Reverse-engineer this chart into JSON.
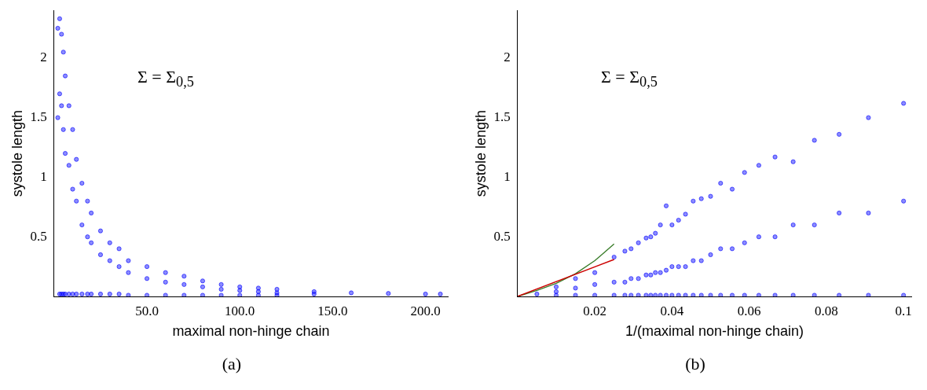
{
  "chart_data": [
    {
      "type": "scatter",
      "xlabel": "maximal non-hinge chain",
      "ylabel": "systole length",
      "annotations": [
        "Σ = Σ$_{0,5}$",
        "(a)"
      ],
      "xlim": [
        0,
        212
      ],
      "ylim": [
        0,
        2.4
      ],
      "xticks": [
        {
          "value": 50,
          "label": "50.0"
        },
        {
          "value": 100,
          "label": "100.0"
        },
        {
          "value": 150,
          "label": "150.0"
        },
        {
          "value": 200,
          "label": "200.0"
        }
      ],
      "yticks": [
        0.5,
        1.0,
        1.5,
        2.0
      ],
      "marker": "circle",
      "x": [
        2,
        3,
        4,
        5,
        6,
        8,
        10,
        12,
        15,
        18,
        20,
        25,
        30,
        35,
        40,
        50,
        60,
        70,
        80,
        90,
        100,
        110,
        120,
        140,
        160,
        180,
        200,
        208,
        2,
        3,
        4,
        5,
        6,
        8,
        10,
        12,
        15,
        18,
        20,
        25,
        30,
        35,
        40,
        50,
        60,
        70,
        80,
        90,
        100,
        110,
        120,
        140,
        3,
        4,
        5,
        6,
        8,
        10,
        12,
        15,
        18,
        20,
        25,
        30,
        35,
        40,
        50,
        60,
        70,
        80,
        90,
        100,
        110,
        120
      ],
      "series": [
        {
          "color": "#0000ff",
          "values": [
            2.25,
            2.33,
            2.2,
            2.05,
            1.85,
            1.6,
            1.4,
            1.15,
            0.95,
            0.8,
            0.7,
            0.55,
            0.45,
            0.4,
            0.3,
            0.25,
            0.2,
            0.17,
            0.13,
            0.1,
            0.08,
            0.07,
            0.06,
            0.04,
            0.03,
            0.025,
            0.02,
            0.02,
            1.5,
            1.7,
            1.6,
            1.4,
            1.2,
            1.1,
            0.9,
            0.8,
            0.6,
            0.5,
            0.45,
            0.35,
            0.3,
            0.25,
            0.2,
            0.15,
            0.12,
            0.1,
            0.08,
            0.06,
            0.05,
            0.04,
            0.03,
            0.02,
            0.02,
            0.02,
            0.02,
            0.02,
            0.02,
            0.02,
            0.02,
            0.02,
            0.02,
            0.02,
            0.02,
            0.02,
            0.02,
            0.01,
            0.01,
            0.01,
            0.01,
            0.01,
            0.01,
            0.01,
            0.01,
            0.01
          ]
        }
      ]
    },
    {
      "type": "scatter",
      "xlabel": "1/(maximal non-hinge chain)",
      "ylabel": "systole length",
      "annotations": [
        "Σ = Σ$_{0,5}$",
        "(b)"
      ],
      "xlim": [
        0,
        0.102
      ],
      "ylim": [
        0,
        2.4
      ],
      "xticks": [
        0.02,
        0.04,
        0.06,
        0.08,
        0.1
      ],
      "yticks": [
        0.5,
        1.0,
        1.5,
        2.0
      ],
      "marker": "circle",
      "x": [
        0.1,
        0.0909,
        0.0833,
        0.0769,
        0.0714,
        0.0667,
        0.0625,
        0.0588,
        0.0556,
        0.0526,
        0.05,
        0.0476,
        0.0455,
        0.0435,
        0.0417,
        0.04,
        0.0385,
        0.037,
        0.0357,
        0.0345,
        0.0333,
        0.0313,
        0.0294,
        0.0278,
        0.025,
        0.02,
        0.015,
        0.01,
        0.005,
        0.1,
        0.0909,
        0.0833,
        0.0769,
        0.0714,
        0.0667,
        0.0625,
        0.0588,
        0.0556,
        0.0526,
        0.05,
        0.0476,
        0.0455,
        0.0435,
        0.0417,
        0.04,
        0.0385,
        0.037,
        0.0357,
        0.0345,
        0.0333,
        0.0313,
        0.0294,
        0.0278,
        0.025,
        0.02,
        0.015,
        0.01,
        0.1,
        0.0909,
        0.0833,
        0.0769,
        0.0714,
        0.0667,
        0.0625,
        0.0588,
        0.0556,
        0.0526,
        0.05,
        0.0476,
        0.0455,
        0.0435,
        0.0417,
        0.04,
        0.0385,
        0.037,
        0.0357,
        0.0345,
        0.0333,
        0.0313,
        0.0294,
        0.0278,
        0.025,
        0.02,
        0.015,
        0.01
      ],
      "series": [
        {
          "color": "#0000ff",
          "values": [
            1.62,
            1.5,
            1.36,
            1.31,
            1.13,
            1.17,
            1.1,
            1.04,
            0.9,
            0.95,
            0.84,
            0.82,
            0.8,
            0.69,
            0.64,
            0.6,
            0.76,
            0.6,
            0.53,
            0.5,
            0.49,
            0.45,
            0.4,
            0.38,
            0.33,
            0.2,
            0.15,
            0.08,
            0.02,
            0.8,
            0.7,
            0.7,
            0.6,
            0.6,
            0.5,
            0.5,
            0.45,
            0.4,
            0.4,
            0.35,
            0.3,
            0.3,
            0.25,
            0.25,
            0.25,
            0.22,
            0.2,
            0.2,
            0.18,
            0.18,
            0.15,
            0.15,
            0.12,
            0.12,
            0.1,
            0.07,
            0.04,
            0.01,
            0.01,
            0.01,
            0.01,
            0.01,
            0.01,
            0.01,
            0.01,
            0.01,
            0.01,
            0.01,
            0.01,
            0.01,
            0.01,
            0.01,
            0.01,
            0.01,
            0.01,
            0.01,
            0.01,
            0.01,
            0.01,
            0.01,
            0.01,
            0.01,
            0.01,
            0.01,
            0.01
          ]
        },
        {
          "type": "line",
          "marker": "none",
          "color": "#cc0000",
          "x": [
            0,
            0.025
          ],
          "values": [
            0,
            0.31
          ]
        },
        {
          "type": "line",
          "marker": "none",
          "color": "#3a7d2a",
          "x": [
            0,
            0.005,
            0.01,
            0.015,
            0.02,
            0.025
          ],
          "values": [
            0,
            0.05,
            0.11,
            0.19,
            0.3,
            0.44
          ]
        }
      ]
    }
  ]
}
